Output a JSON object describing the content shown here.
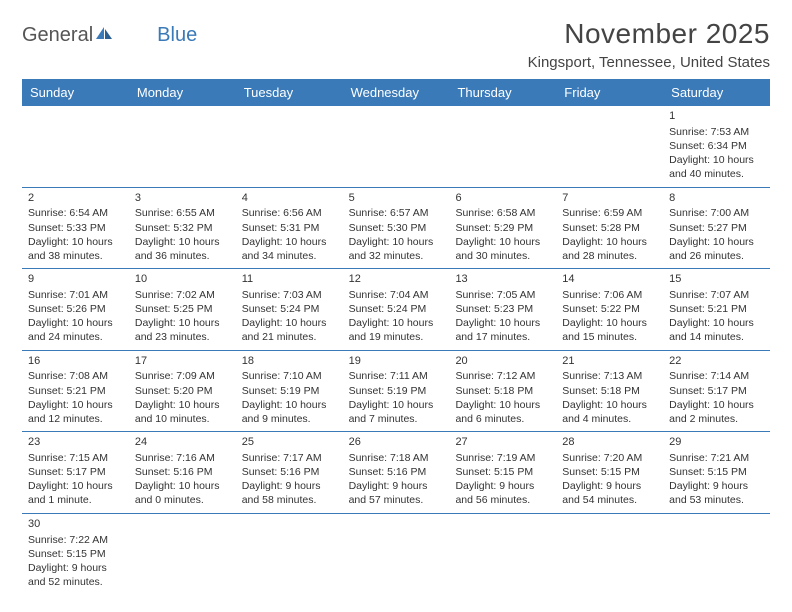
{
  "logo": {
    "general": "General",
    "blue": "Blue"
  },
  "title": "November 2025",
  "location": "Kingsport, Tennessee, United States",
  "colors": {
    "header_bg": "#3a7ab8",
    "header_text": "#ffffff",
    "text": "#333333",
    "row_border": "#3a7ab8",
    "background": "#ffffff"
  },
  "day_names": [
    "Sunday",
    "Monday",
    "Tuesday",
    "Wednesday",
    "Thursday",
    "Friday",
    "Saturday"
  ],
  "weeks": [
    [
      null,
      null,
      null,
      null,
      null,
      null,
      {
        "n": "1",
        "sr": "Sunrise: 7:53 AM",
        "ss": "Sunset: 6:34 PM",
        "dl1": "Daylight: 10 hours",
        "dl2": "and 40 minutes."
      }
    ],
    [
      {
        "n": "2",
        "sr": "Sunrise: 6:54 AM",
        "ss": "Sunset: 5:33 PM",
        "dl1": "Daylight: 10 hours",
        "dl2": "and 38 minutes."
      },
      {
        "n": "3",
        "sr": "Sunrise: 6:55 AM",
        "ss": "Sunset: 5:32 PM",
        "dl1": "Daylight: 10 hours",
        "dl2": "and 36 minutes."
      },
      {
        "n": "4",
        "sr": "Sunrise: 6:56 AM",
        "ss": "Sunset: 5:31 PM",
        "dl1": "Daylight: 10 hours",
        "dl2": "and 34 minutes."
      },
      {
        "n": "5",
        "sr": "Sunrise: 6:57 AM",
        "ss": "Sunset: 5:30 PM",
        "dl1": "Daylight: 10 hours",
        "dl2": "and 32 minutes."
      },
      {
        "n": "6",
        "sr": "Sunrise: 6:58 AM",
        "ss": "Sunset: 5:29 PM",
        "dl1": "Daylight: 10 hours",
        "dl2": "and 30 minutes."
      },
      {
        "n": "7",
        "sr": "Sunrise: 6:59 AM",
        "ss": "Sunset: 5:28 PM",
        "dl1": "Daylight: 10 hours",
        "dl2": "and 28 minutes."
      },
      {
        "n": "8",
        "sr": "Sunrise: 7:00 AM",
        "ss": "Sunset: 5:27 PM",
        "dl1": "Daylight: 10 hours",
        "dl2": "and 26 minutes."
      }
    ],
    [
      {
        "n": "9",
        "sr": "Sunrise: 7:01 AM",
        "ss": "Sunset: 5:26 PM",
        "dl1": "Daylight: 10 hours",
        "dl2": "and 24 minutes."
      },
      {
        "n": "10",
        "sr": "Sunrise: 7:02 AM",
        "ss": "Sunset: 5:25 PM",
        "dl1": "Daylight: 10 hours",
        "dl2": "and 23 minutes."
      },
      {
        "n": "11",
        "sr": "Sunrise: 7:03 AM",
        "ss": "Sunset: 5:24 PM",
        "dl1": "Daylight: 10 hours",
        "dl2": "and 21 minutes."
      },
      {
        "n": "12",
        "sr": "Sunrise: 7:04 AM",
        "ss": "Sunset: 5:24 PM",
        "dl1": "Daylight: 10 hours",
        "dl2": "and 19 minutes."
      },
      {
        "n": "13",
        "sr": "Sunrise: 7:05 AM",
        "ss": "Sunset: 5:23 PM",
        "dl1": "Daylight: 10 hours",
        "dl2": "and 17 minutes."
      },
      {
        "n": "14",
        "sr": "Sunrise: 7:06 AM",
        "ss": "Sunset: 5:22 PM",
        "dl1": "Daylight: 10 hours",
        "dl2": "and 15 minutes."
      },
      {
        "n": "15",
        "sr": "Sunrise: 7:07 AM",
        "ss": "Sunset: 5:21 PM",
        "dl1": "Daylight: 10 hours",
        "dl2": "and 14 minutes."
      }
    ],
    [
      {
        "n": "16",
        "sr": "Sunrise: 7:08 AM",
        "ss": "Sunset: 5:21 PM",
        "dl1": "Daylight: 10 hours",
        "dl2": "and 12 minutes."
      },
      {
        "n": "17",
        "sr": "Sunrise: 7:09 AM",
        "ss": "Sunset: 5:20 PM",
        "dl1": "Daylight: 10 hours",
        "dl2": "and 10 minutes."
      },
      {
        "n": "18",
        "sr": "Sunrise: 7:10 AM",
        "ss": "Sunset: 5:19 PM",
        "dl1": "Daylight: 10 hours",
        "dl2": "and 9 minutes."
      },
      {
        "n": "19",
        "sr": "Sunrise: 7:11 AM",
        "ss": "Sunset: 5:19 PM",
        "dl1": "Daylight: 10 hours",
        "dl2": "and 7 minutes."
      },
      {
        "n": "20",
        "sr": "Sunrise: 7:12 AM",
        "ss": "Sunset: 5:18 PM",
        "dl1": "Daylight: 10 hours",
        "dl2": "and 6 minutes."
      },
      {
        "n": "21",
        "sr": "Sunrise: 7:13 AM",
        "ss": "Sunset: 5:18 PM",
        "dl1": "Daylight: 10 hours",
        "dl2": "and 4 minutes."
      },
      {
        "n": "22",
        "sr": "Sunrise: 7:14 AM",
        "ss": "Sunset: 5:17 PM",
        "dl1": "Daylight: 10 hours",
        "dl2": "and 2 minutes."
      }
    ],
    [
      {
        "n": "23",
        "sr": "Sunrise: 7:15 AM",
        "ss": "Sunset: 5:17 PM",
        "dl1": "Daylight: 10 hours",
        "dl2": "and 1 minute."
      },
      {
        "n": "24",
        "sr": "Sunrise: 7:16 AM",
        "ss": "Sunset: 5:16 PM",
        "dl1": "Daylight: 10 hours",
        "dl2": "and 0 minutes."
      },
      {
        "n": "25",
        "sr": "Sunrise: 7:17 AM",
        "ss": "Sunset: 5:16 PM",
        "dl1": "Daylight: 9 hours",
        "dl2": "and 58 minutes."
      },
      {
        "n": "26",
        "sr": "Sunrise: 7:18 AM",
        "ss": "Sunset: 5:16 PM",
        "dl1": "Daylight: 9 hours",
        "dl2": "and 57 minutes."
      },
      {
        "n": "27",
        "sr": "Sunrise: 7:19 AM",
        "ss": "Sunset: 5:15 PM",
        "dl1": "Daylight: 9 hours",
        "dl2": "and 56 minutes."
      },
      {
        "n": "28",
        "sr": "Sunrise: 7:20 AM",
        "ss": "Sunset: 5:15 PM",
        "dl1": "Daylight: 9 hours",
        "dl2": "and 54 minutes."
      },
      {
        "n": "29",
        "sr": "Sunrise: 7:21 AM",
        "ss": "Sunset: 5:15 PM",
        "dl1": "Daylight: 9 hours",
        "dl2": "and 53 minutes."
      }
    ],
    [
      {
        "n": "30",
        "sr": "Sunrise: 7:22 AM",
        "ss": "Sunset: 5:15 PM",
        "dl1": "Daylight: 9 hours",
        "dl2": "and 52 minutes."
      },
      null,
      null,
      null,
      null,
      null,
      null
    ]
  ]
}
